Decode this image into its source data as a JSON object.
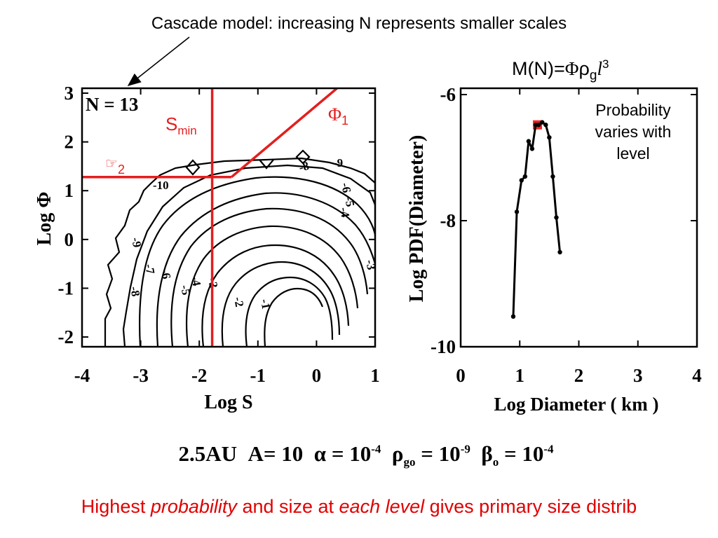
{
  "slide": {
    "caption_top": "Cascade model: increasing N represents smaller scales",
    "formula": {
      "prefix": "M(N)=",
      "phi": "Φ",
      "rho": "ρ",
      "g": "g",
      "l": "l",
      "exp": "3"
    },
    "probability_note": "Probability varies with level",
    "params": {
      "au": "2.5AU",
      "a": "A= 10",
      "alpha_prefix": "α = 10",
      "alpha_exp": "-4",
      "rho_sym": "ρ",
      "rho_sub": "go",
      "rho_mid": " = 10",
      "rho_exp": "-9",
      "beta_sym": "β",
      "beta_sub": "o",
      "beta_mid": " = 10",
      "beta_exp": "-4"
    },
    "footer": {
      "p1": "Highest ",
      "p2": "probability",
      "p3": " and size at ",
      "p4": "each level",
      "p5": " gives primary size distrib"
    }
  },
  "chart_data": [
    {
      "type": "contour",
      "title": "N = 13",
      "xlabel": "Log S",
      "ylabel": "Log Φ",
      "xlim": [
        -4,
        1
      ],
      "ylim": [
        -2.2,
        3.1
      ],
      "xticks": [
        "-4",
        "-3",
        "-2",
        "-1",
        "0",
        "1"
      ],
      "yticks": [
        "3",
        "2",
        "1",
        "0",
        "-1",
        "-2"
      ],
      "contour_labels": [
        "-10",
        "-9",
        "-8",
        "-7",
        "-6",
        "-5",
        "-4",
        "-3",
        "-2",
        "-1",
        "-9",
        "-8",
        "-6",
        "-5",
        "-4",
        "-3"
      ],
      "annotations": {
        "smin_main": "S",
        "smin_sub": "min",
        "phi1_main": "Φ",
        "phi1_sub": "1",
        "phi2_main": "☞",
        "phi2_sub": "2"
      },
      "smin_x": -1.78,
      "phi2_y": 1.28,
      "phi1_line": [
        [
          -1.45,
          1.28
        ],
        [
          0.35,
          3.1
        ]
      ],
      "line_color": "#e41e1e"
    },
    {
      "type": "line",
      "xlabel": "Log Diameter ( km )",
      "ylabel": "Log PDF(Diameter)",
      "xlim": [
        0,
        4
      ],
      "ylim": [
        -10,
        -5.9
      ],
      "xticks": [
        "0",
        "1",
        "2",
        "3",
        "4"
      ],
      "yticks": [
        "-6",
        "-8",
        "-10"
      ],
      "series": [
        {
          "x": [
            0.89,
            0.95,
            1.03,
            1.09,
            1.15,
            1.21,
            1.27,
            1.32,
            1.38,
            1.44,
            1.5,
            1.56,
            1.62,
            1.68
          ],
          "y": [
            -9.52,
            -7.86,
            -7.36,
            -7.3,
            -6.74,
            -6.86,
            -6.48,
            -6.48,
            -6.44,
            -6.48,
            -6.68,
            -7.3,
            -7.95,
            -8.5
          ]
        }
      ],
      "highlight": {
        "x": 1.3,
        "y": -6.48,
        "color": "#ff2222"
      }
    }
  ]
}
